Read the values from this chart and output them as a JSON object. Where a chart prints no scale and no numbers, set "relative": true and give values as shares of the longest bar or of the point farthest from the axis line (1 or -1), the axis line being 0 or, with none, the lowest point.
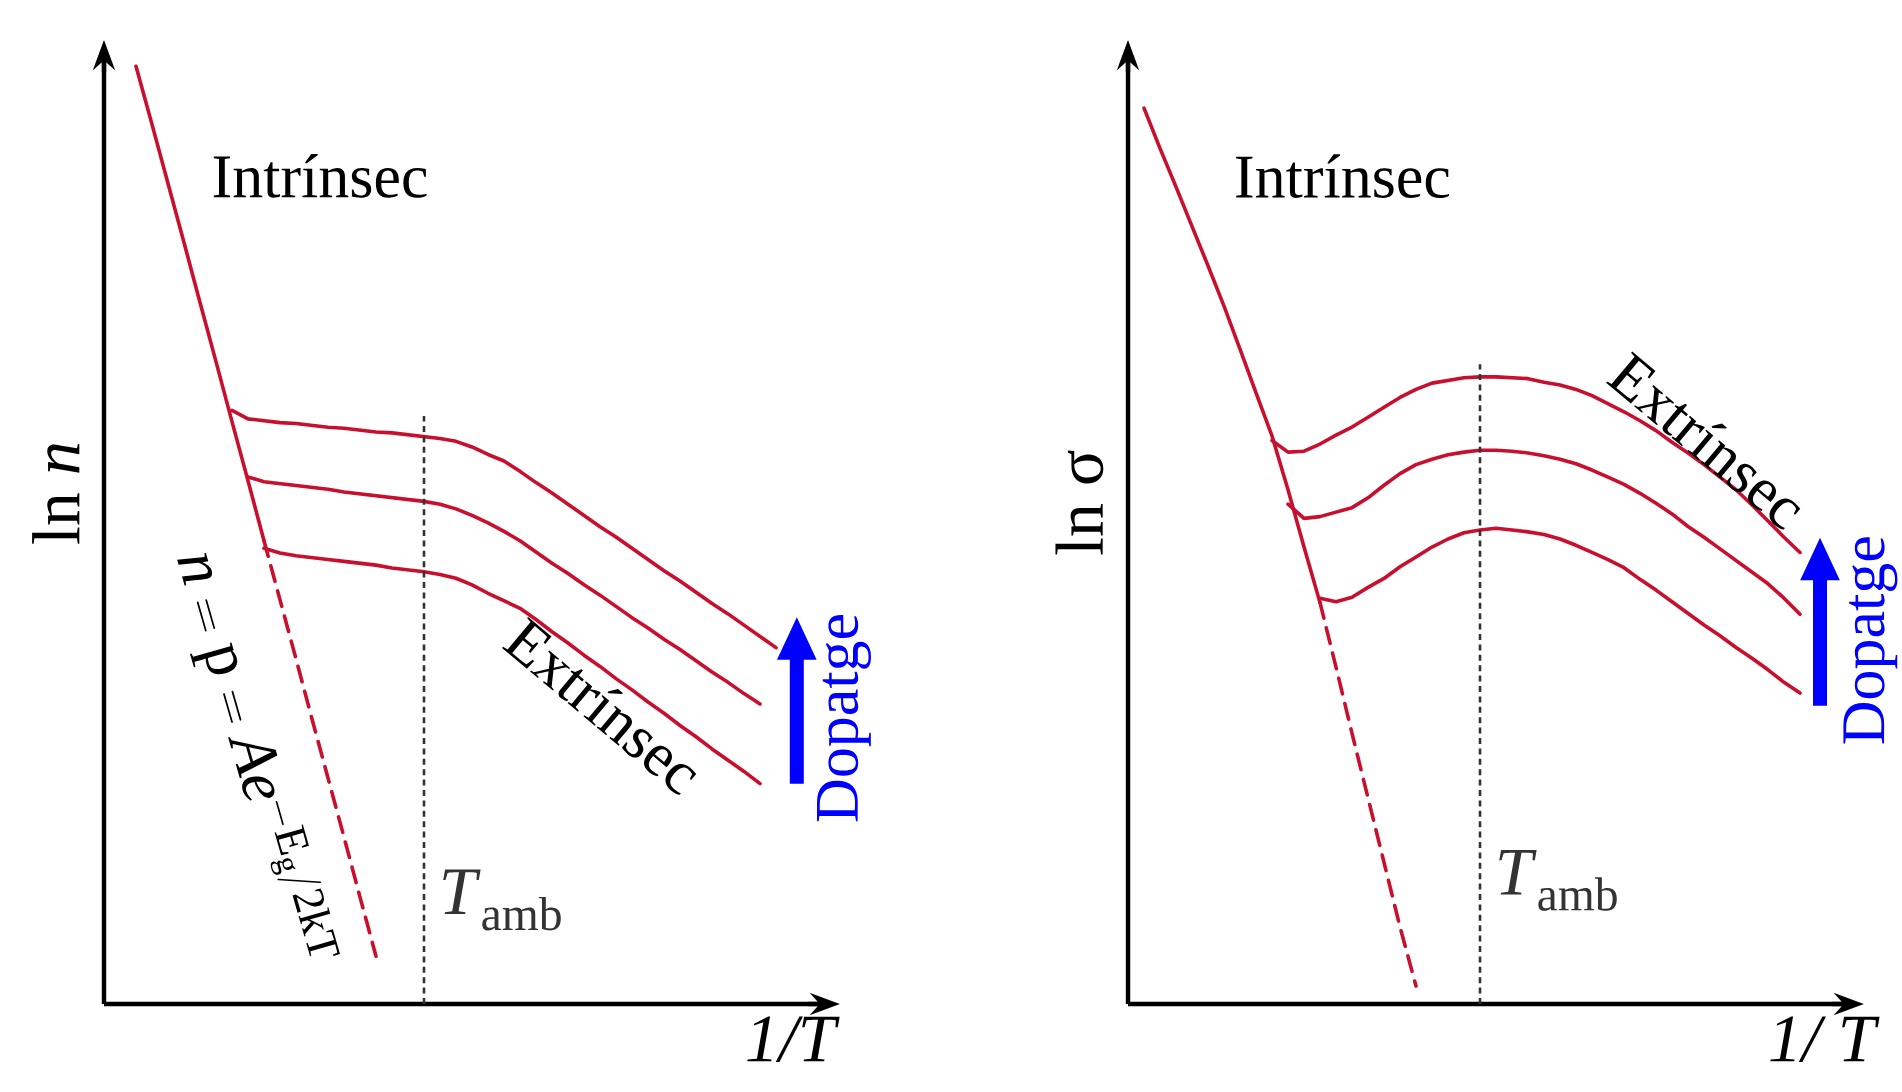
{
  "chart_data": [
    {
      "type": "line",
      "relative": true,
      "xlabel": "*1/T*",
      "ylabel": "ln *n*",
      "marker": "none",
      "line_style": "solid",
      "categories": [
        null,
        null,
        null,
        null,
        null,
        null,
        null,
        null,
        null,
        null,
        null,
        null,
        null,
        null,
        null,
        null,
        null,
        null,
        null,
        null,
        null,
        null,
        null,
        null,
        null,
        null,
        null,
        null,
        null,
        null,
        null,
        null,
        null,
        null,
        null,
        null,
        null,
        null,
        null,
        null,
        null,
        null,
        null,
        null,
        null,
        null
      ],
      "series": [
        {
          "color": "#c8102e",
          "values": [
            null,
            null,
            1.0,
            0.938,
            0.875,
            0.812,
            0.748,
            0.685,
            0.621,
            0.558,
            0.494,
            null,
            null,
            null,
            null,
            null,
            null,
            null,
            null,
            null,
            null,
            null,
            null,
            null,
            null,
            null,
            null,
            null,
            null,
            null,
            null,
            null,
            null,
            null,
            null,
            null,
            null,
            null,
            null,
            null,
            null,
            null,
            null,
            null,
            null,
            null
          ]
        },
        {
          "color": "#c8102e",
          "line_style": "dashed",
          "values": [
            null,
            null,
            null,
            null,
            null,
            null,
            null,
            null,
            null,
            null,
            0.494,
            0.431,
            0.368,
            0.304,
            0.241,
            0.178,
            0.114,
            0.051,
            null,
            null,
            null,
            null,
            null,
            null,
            null,
            null,
            null,
            null,
            null,
            null,
            null,
            null,
            null,
            null,
            null,
            null,
            null,
            null,
            null,
            null,
            null,
            null,
            null,
            null,
            null,
            null
          ]
        },
        {
          "color": "#c8102e",
          "values": [
            null,
            null,
            null,
            null,
            null,
            null,
            null,
            null,
            0.633,
            0.624,
            0.622,
            0.62,
            0.619,
            0.617,
            0.615,
            0.614,
            0.612,
            0.61,
            0.609,
            0.607,
            0.605,
            0.603,
            0.6,
            0.594,
            0.586,
            0.579,
            0.568,
            0.556,
            0.545,
            0.533,
            0.521,
            0.509,
            0.498,
            0.486,
            0.474,
            0.462,
            0.451,
            0.439,
            0.427,
            0.416,
            0.404,
            0.392,
            0.38,
            null,
            null,
            null
          ]
        },
        {
          "color": "#c8102e",
          "values": [
            null,
            null,
            null,
            null,
            null,
            null,
            null,
            null,
            null,
            0.562,
            0.557,
            0.555,
            0.553,
            0.551,
            0.549,
            0.546,
            0.544,
            0.542,
            0.54,
            0.538,
            0.536,
            0.533,
            0.528,
            0.521,
            0.513,
            0.504,
            0.494,
            0.482,
            0.47,
            0.459,
            0.447,
            0.436,
            0.424,
            0.412,
            0.401,
            0.389,
            0.378,
            0.366,
            0.354,
            0.343,
            0.331,
            0.32,
            null,
            null,
            null,
            null
          ]
        },
        {
          "color": "#c8102e",
          "values": [
            null,
            null,
            null,
            null,
            null,
            null,
            null,
            null,
            null,
            null,
            0.486,
            0.481,
            0.478,
            0.476,
            0.474,
            0.472,
            0.47,
            0.468,
            0.465,
            0.463,
            0.461,
            0.458,
            0.454,
            0.447,
            0.438,
            0.43,
            0.422,
            0.41,
            0.397,
            0.385,
            0.372,
            0.36,
            0.347,
            0.335,
            0.322,
            0.31,
            0.297,
            0.285,
            0.272,
            0.26,
            0.248,
            0.235,
            null,
            null,
            null,
            null
          ]
        }
      ],
      "annotations": [
        "Intrínsec",
        "n = \\mathrm{p} = Ae^{-\\mathrm{E_g}/2\\mathrm{kT}}",
        "Extrínsec",
        "Dopatge",
        "*T*$_{amb}$"
      ]
    },
    {
      "type": "line",
      "relative": true,
      "xlabel": "*1/ T*",
      "ylabel": "ln σ",
      "marker": "none",
      "line_style": "solid",
      "categories": [
        null,
        null,
        null,
        null,
        null,
        null,
        null,
        null,
        null,
        null,
        null,
        null,
        null,
        null,
        null,
        null,
        null,
        null,
        null,
        null,
        null,
        null,
        null,
        null,
        null,
        null,
        null,
        null,
        null,
        null,
        null,
        null,
        null,
        null,
        null,
        null,
        null,
        null,
        null,
        null,
        null,
        null,
        null,
        null,
        null,
        null
      ],
      "series": [
        {
          "color": "#c8102e",
          "values": [
            null,
            1.0,
            0.955,
            0.912,
            0.868,
            0.824,
            0.779,
            0.731,
            0.682,
            0.634,
            0.574,
            0.51,
            0.448,
            null,
            null,
            null,
            null,
            null,
            null,
            null,
            null,
            null,
            null,
            null,
            null,
            null,
            null,
            null,
            null,
            null,
            null,
            null,
            null,
            null,
            null,
            null,
            null,
            null,
            null,
            null,
            null,
            null,
            null,
            null,
            null,
            null
          ]
        },
        {
          "color": "#c8102e",
          "line_style": "dashed",
          "values": [
            null,
            null,
            null,
            null,
            null,
            null,
            null,
            null,
            null,
            null,
            null,
            null,
            0.448,
            0.376,
            0.302,
            0.23,
            0.158,
            0.086,
            0.02,
            null,
            null,
            null,
            null,
            null,
            null,
            null,
            null,
            null,
            null,
            null,
            null,
            null,
            null,
            null,
            null,
            null,
            null,
            null,
            null,
            null,
            null,
            null,
            null,
            null,
            null,
            null
          ]
        },
        {
          "color": "#c8102e",
          "values": [
            null,
            null,
            null,
            null,
            null,
            null,
            null,
            null,
            null,
            0.629,
            0.616,
            0.617,
            0.625,
            0.635,
            0.644,
            0.655,
            0.666,
            0.677,
            0.686,
            0.693,
            0.696,
            0.699,
            0.7,
            0.7,
            0.699,
            0.698,
            0.694,
            0.691,
            0.686,
            0.679,
            0.67,
            0.661,
            0.651,
            0.64,
            0.627,
            0.615,
            0.602,
            0.588,
            0.574,
            0.557,
            0.539,
            0.521,
            0.504,
            null,
            null,
            null
          ]
        },
        {
          "color": "#c8102e",
          "values": [
            null,
            null,
            null,
            null,
            null,
            null,
            null,
            null,
            null,
            null,
            0.558,
            0.542,
            0.544,
            0.549,
            0.554,
            0.565,
            0.579,
            0.592,
            0.602,
            0.608,
            0.613,
            0.616,
            0.618,
            0.618,
            0.617,
            0.615,
            0.612,
            0.608,
            0.603,
            0.596,
            0.588,
            0.58,
            0.57,
            0.559,
            0.547,
            0.533,
            0.521,
            0.508,
            0.495,
            0.482,
            0.469,
            0.453,
            0.435,
            null,
            null,
            null
          ]
        },
        {
          "color": "#c8102e",
          "values": [
            null,
            null,
            null,
            null,
            null,
            null,
            null,
            null,
            null,
            null,
            null,
            null,
            0.453,
            0.449,
            0.454,
            0.465,
            0.475,
            0.488,
            0.499,
            0.51,
            0.519,
            0.526,
            0.529,
            0.531,
            0.529,
            0.527,
            0.524,
            0.519,
            0.512,
            0.504,
            0.496,
            0.487,
            0.474,
            0.462,
            0.449,
            0.436,
            0.423,
            0.411,
            0.398,
            0.386,
            0.373,
            0.359,
            0.347,
            null,
            null,
            null
          ]
        }
      ],
      "annotations": [
        "Intrínsec",
        "Extrínsec",
        "Dopatge",
        "*T*$_{amb}$"
      ]
    }
  ]
}
